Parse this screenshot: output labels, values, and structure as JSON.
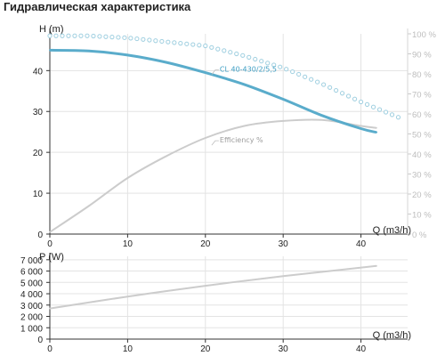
{
  "page": {
    "title": "Гидравлическая характеристика"
  },
  "chart_data": [
    {
      "type": "line",
      "x_label": "Q (m3/h)",
      "y_label": "H (m)",
      "xlim": [
        0,
        46
      ],
      "ylim": [
        0,
        49
      ],
      "x_ticks": [
        0,
        10,
        20,
        30,
        40
      ],
      "y_ticks": [
        0,
        10,
        20,
        30,
        40
      ],
      "y2_lim": [
        0,
        100
      ],
      "y2_ticks": [
        "0 %",
        "10 %",
        "20 %",
        "30 %",
        "40 %",
        "50 %",
        "60 %",
        "70 %",
        "80 %",
        "90 %",
        "100 %"
      ],
      "y2_tick_values": [
        0,
        10,
        20,
        30,
        40,
        50,
        60,
        70,
        80,
        90,
        100
      ],
      "grid": true,
      "colors": {
        "head": "#5aaccb",
        "efficiency": "#cccccc",
        "dotted": "#9fcfe0",
        "grid": "#e3e3e3"
      },
      "series": [
        {
          "name": "CL 40-430/2/5,5",
          "axis": "left",
          "style": "solid",
          "x": [
            0,
            5,
            10,
            15,
            20,
            25,
            30,
            35,
            40,
            42
          ],
          "y": [
            45.0,
            44.8,
            43.8,
            42.0,
            39.5,
            36.6,
            33.0,
            29.0,
            25.8,
            24.9
          ]
        },
        {
          "name": "Efficiency %",
          "axis": "right",
          "style": "solid",
          "x": [
            0,
            5,
            10,
            15,
            20,
            25,
            30,
            35,
            40,
            42
          ],
          "y": [
            1,
            14,
            28,
            39,
            48,
            54,
            56.5,
            57,
            54,
            53
          ]
        },
        {
          "axis": "right",
          "style": "dotted",
          "x": [
            0,
            5,
            10,
            15,
            20,
            25,
            30,
            35,
            40,
            45
          ],
          "y": [
            99,
            99,
            98,
            96,
            94,
            89,
            83,
            75,
            66,
            58
          ]
        }
      ],
      "annotations": [
        {
          "text": "CL 40-430/2/5,5",
          "x": 21.5,
          "y": 40.8
        },
        {
          "text": "Efficiency %",
          "x": 21.5,
          "y": 23.5
        }
      ]
    },
    {
      "type": "line",
      "x_label": "Q (m3/h)",
      "y_label": "P (W)",
      "xlim": [
        0,
        46
      ],
      "ylim": [
        0,
        7300
      ],
      "x_ticks": [
        0,
        10,
        20,
        30,
        40
      ],
      "y_ticks": [
        0,
        1000,
        2000,
        3000,
        4000,
        5000,
        6000,
        7000
      ],
      "y_tick_labels": [
        "0",
        "1 000",
        "2 000",
        "3 000",
        "4 000",
        "5 000",
        "6 000",
        "7 000"
      ],
      "grid": true,
      "colors": {
        "power": "#cccccc"
      },
      "series": [
        {
          "axis": "left",
          "style": "solid",
          "x": [
            0,
            10,
            20,
            30,
            42
          ],
          "y": [
            2700,
            3750,
            4700,
            5550,
            6450
          ]
        }
      ]
    }
  ]
}
